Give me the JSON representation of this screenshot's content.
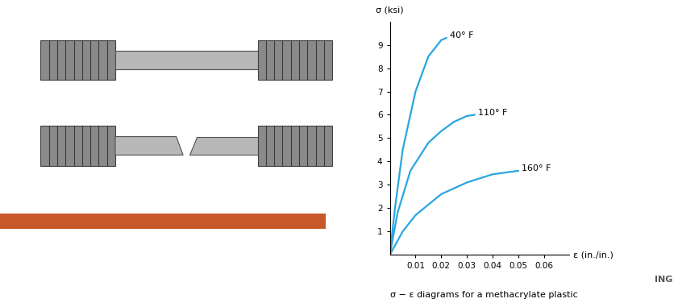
{
  "chart_data": {
    "type": "line",
    "y_label": "σ (ksi)",
    "x_label": "ε (in./in.)",
    "caption": "σ − ε diagrams for a methacrylate plastic",
    "series": [
      {
        "name": "40° F",
        "color": "#2aa6df",
        "x": [
          0,
          0.002,
          0.005,
          0.01,
          0.015,
          0.02,
          0.022
        ],
        "values": [
          0,
          2.0,
          4.5,
          7.0,
          8.5,
          9.2,
          9.3
        ]
      },
      {
        "name": "110° F",
        "color": "#2aa6df",
        "x": [
          0,
          0.003,
          0.008,
          0.015,
          0.02,
          0.025,
          0.03,
          0.033
        ],
        "values": [
          0,
          1.8,
          3.6,
          4.8,
          5.3,
          5.7,
          5.95,
          6.0
        ]
      },
      {
        "name": "160° F",
        "color": "#2aa6df",
        "x": [
          0,
          0.005,
          0.01,
          0.02,
          0.03,
          0.04,
          0.05
        ],
        "values": [
          0,
          1.0,
          1.7,
          2.6,
          3.1,
          3.45,
          3.6
        ]
      }
    ],
    "xlim": [
      0,
      0.07
    ],
    "ylim": [
      0,
      10
    ],
    "xticks": [
      0.01,
      0.02,
      0.03,
      0.04,
      0.05,
      0.06
    ],
    "yticks": [
      1,
      2,
      3,
      4,
      5,
      6,
      7,
      8,
      9
    ],
    "grid": false
  },
  "watermark": "ING"
}
